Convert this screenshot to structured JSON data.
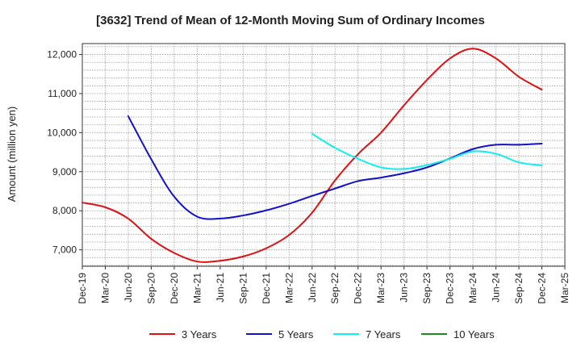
{
  "chart_data": {
    "type": "line",
    "title": "[3632]  Trend of Mean of 12-Month Moving Sum of Ordinary Incomes",
    "xlabel": "",
    "ylabel": "Amount (million yen)",
    "x_labels": [
      "Dec-19",
      "Mar-20",
      "Jun-20",
      "Sep-20",
      "Dec-20",
      "Mar-21",
      "Jun-21",
      "Sep-21",
      "Dec-21",
      "Mar-22",
      "Jun-22",
      "Sep-22",
      "Dec-22",
      "Mar-23",
      "Jun-23",
      "Sep-23",
      "Dec-23",
      "Mar-24",
      "Jun-24",
      "Sep-24",
      "Dec-24",
      "Mar-25"
    ],
    "y_ticks": [
      "7,000",
      "8,000",
      "9,000",
      "10,000",
      "11,000",
      "12,000"
    ],
    "y_tick_values": [
      7000,
      8000,
      9000,
      10000,
      11000,
      12000
    ],
    "ylim": [
      6580,
      12280
    ],
    "grid": true,
    "legend_position": "bottom",
    "series": [
      {
        "name": "3 Years",
        "color": "#dd1111",
        "points": [
          [
            0,
            8210
          ],
          [
            1,
            8090
          ],
          [
            2,
            7800
          ],
          [
            3,
            7280
          ],
          [
            4,
            6920
          ],
          [
            5,
            6700
          ],
          [
            6,
            6720
          ],
          [
            7,
            6830
          ],
          [
            8,
            7040
          ],
          [
            9,
            7380
          ],
          [
            10,
            7950
          ],
          [
            11,
            8780
          ],
          [
            12,
            9450
          ],
          [
            13,
            10000
          ],
          [
            14,
            10700
          ],
          [
            15,
            11350
          ],
          [
            16,
            11900
          ],
          [
            17,
            12150
          ],
          [
            18,
            11900
          ],
          [
            19,
            11430
          ],
          [
            20,
            11100
          ]
        ]
      },
      {
        "name": "5 Years",
        "color": "#1111cc",
        "points": [
          [
            2,
            10420
          ],
          [
            3,
            9320
          ],
          [
            4,
            8360
          ],
          [
            5,
            7850
          ],
          [
            6,
            7800
          ],
          [
            7,
            7880
          ],
          [
            8,
            8010
          ],
          [
            9,
            8180
          ],
          [
            10,
            8380
          ],
          [
            11,
            8570
          ],
          [
            12,
            8760
          ],
          [
            13,
            8850
          ],
          [
            14,
            8960
          ],
          [
            15,
            9110
          ],
          [
            16,
            9340
          ],
          [
            17,
            9580
          ],
          [
            18,
            9690
          ],
          [
            19,
            9690
          ],
          [
            20,
            9720
          ]
        ]
      },
      {
        "name": "7 Years",
        "color": "#11eeee",
        "points": [
          [
            10,
            9970
          ],
          [
            11,
            9610
          ],
          [
            12,
            9330
          ],
          [
            13,
            9110
          ],
          [
            14,
            9070
          ],
          [
            15,
            9170
          ],
          [
            16,
            9330
          ],
          [
            17,
            9520
          ],
          [
            18,
            9460
          ],
          [
            19,
            9240
          ],
          [
            20,
            9160
          ]
        ]
      },
      {
        "name": "10 Years",
        "color": "#228822",
        "points": []
      }
    ]
  }
}
